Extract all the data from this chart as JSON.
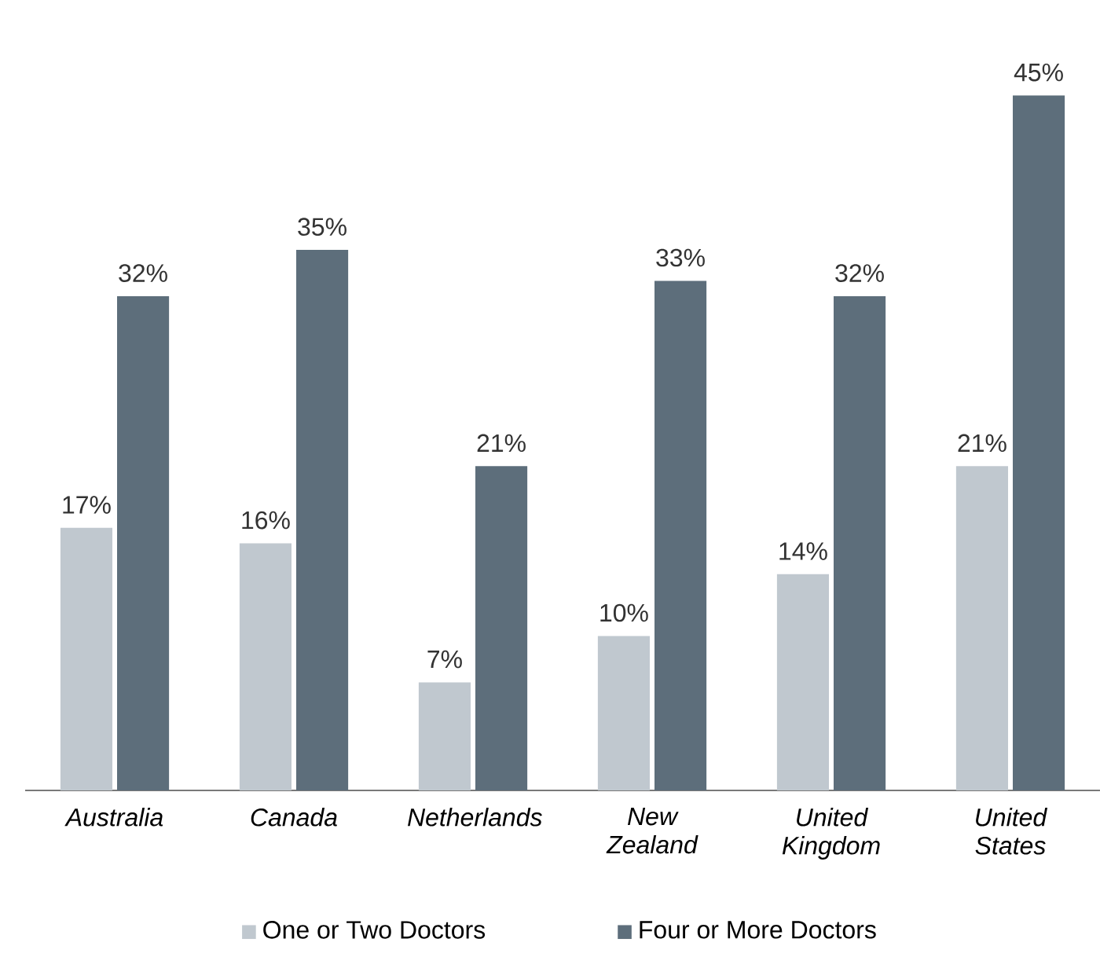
{
  "chart_data": {
    "type": "bar",
    "categories": [
      "Australia",
      "Canada",
      "Netherlands",
      "New Zealand",
      "United Kingdom",
      "United States"
    ],
    "series": [
      {
        "name": "One or Two Doctors",
        "color": "#c0c8cf",
        "values": [
          17,
          16,
          7,
          10,
          14,
          21
        ],
        "value_labels": [
          "17%",
          "16%",
          "7%",
          "10%",
          "14%",
          "21%"
        ]
      },
      {
        "name": "Four or More Doctors",
        "color": "#5d6e7b",
        "values": [
          32,
          35,
          21,
          33,
          32,
          45
        ],
        "value_labels": [
          "32%",
          "35%",
          "21%",
          "33%",
          "32%",
          "45%"
        ]
      }
    ],
    "legend": "bottom"
  }
}
